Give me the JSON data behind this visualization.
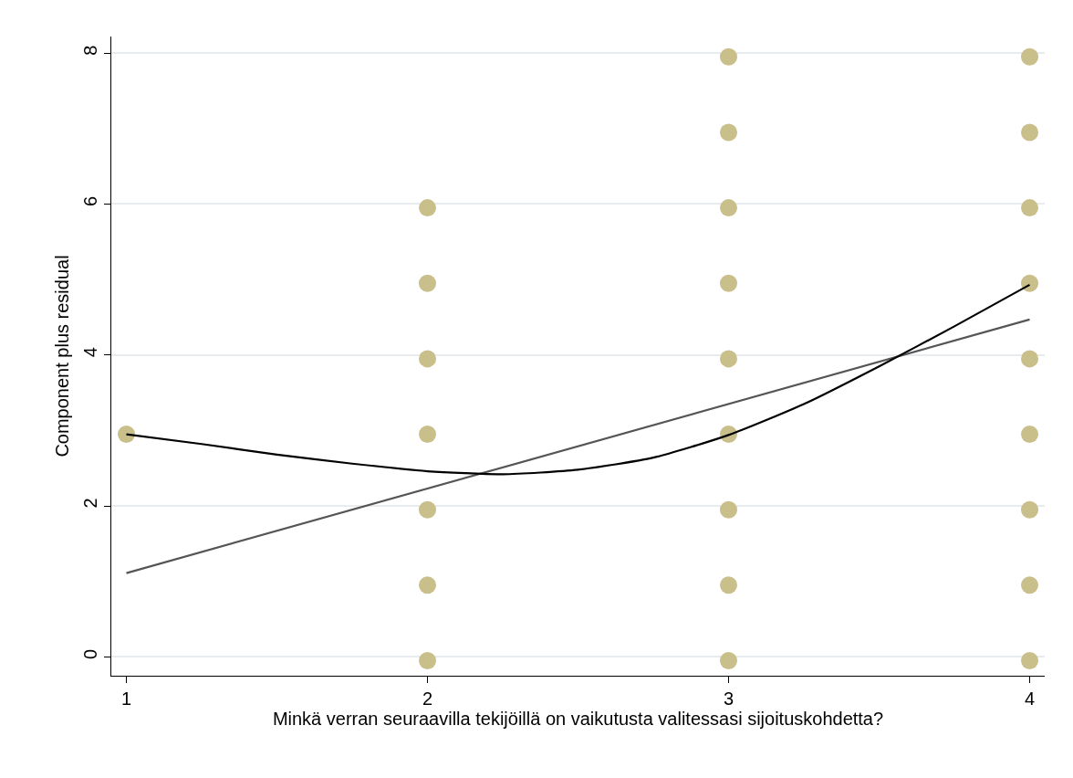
{
  "chart_data": {
    "type": "scatter",
    "xlabel": "Minkä verran seuraavilla tekijöillä on vaikutusta valitessasi sijoituskohdetta?",
    "ylabel": "Component plus residual",
    "xlim": [
      0.95,
      4.05
    ],
    "xticks": [
      1,
      2,
      3,
      4
    ],
    "ylim": [
      -0.25,
      8.22
    ],
    "yticks": [
      0,
      2,
      4,
      6,
      8
    ],
    "grid": "y",
    "series": [
      {
        "marker": "circle",
        "color": "#c9bf8b",
        "x": [
          1,
          2,
          2,
          2,
          2,
          2,
          2,
          2,
          3,
          3,
          3,
          3,
          3,
          3,
          3,
          3,
          3,
          4,
          4,
          4,
          4,
          4,
          4,
          4,
          4,
          4
        ],
        "values": [
          2.95,
          5.95,
          4.95,
          3.95,
          2.95,
          1.95,
          0.95,
          -0.05,
          7.95,
          6.95,
          5.95,
          4.95,
          3.95,
          2.95,
          1.95,
          0.95,
          -0.05,
          7.95,
          6.95,
          5.95,
          4.95,
          3.95,
          2.95,
          1.95,
          0.95,
          -0.05
        ]
      },
      {
        "type": "line",
        "marker": "none",
        "color": "#555555",
        "x": [
          1,
          4
        ],
        "values": [
          1.11,
          4.47
        ]
      },
      {
        "type": "line",
        "marker": "none",
        "color": "#000000",
        "x": [
          1,
          1.25,
          1.5,
          1.75,
          2,
          2.25,
          2.5,
          2.75,
          3,
          3.25,
          3.5,
          3.75,
          4
        ],
        "values": [
          2.95,
          2.82,
          2.68,
          2.56,
          2.46,
          2.42,
          2.48,
          2.64,
          2.94,
          3.35,
          3.85,
          4.38,
          4.93
        ]
      }
    ]
  }
}
